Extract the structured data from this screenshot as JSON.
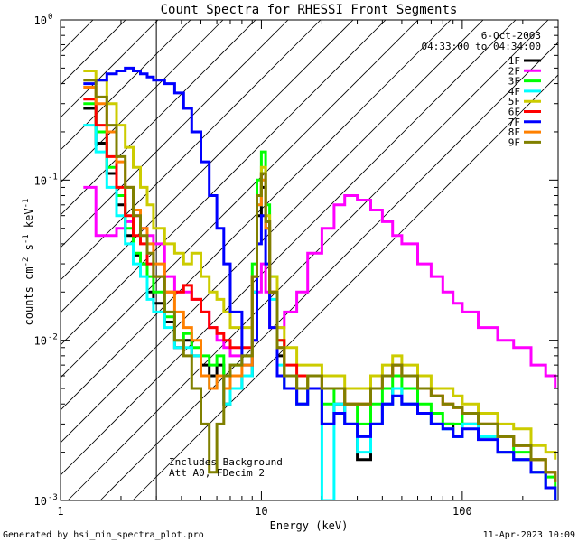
{
  "footer": {
    "generated_by": "Generated by hsi_min_spectra_plot.pro",
    "timestamp": "11-Apr-2023 10:09"
  },
  "chart_data": {
    "type": "line",
    "style": "step",
    "title": "Count Spectra for RHESSI Front Segments",
    "xlabel": "Energy (keV)",
    "ylabel_parts": [
      "counts cm",
      "-2",
      " s",
      "-1",
      " keV",
      "-1"
    ],
    "xscale": "log",
    "yscale": "log",
    "xlim": [
      1.0,
      300.0
    ],
    "ylim": [
      0.001,
      1.0
    ],
    "xticks": [
      {
        "value": 1,
        "label": "1"
      },
      {
        "value": 10,
        "label": "10"
      },
      {
        "value": 100,
        "label": "100"
      }
    ],
    "yticks": [
      {
        "value": 0.001,
        "label": "10",
        "exp": "-3"
      },
      {
        "value": 0.01,
        "label": "10",
        "exp": "-2"
      },
      {
        "value": 0.1,
        "label": "10",
        "exp": "-1"
      },
      {
        "value": 1,
        "label": "10",
        "exp": "0"
      }
    ],
    "hatched_region": [
      1.0,
      3.0
    ],
    "date": "6-Oct-2003",
    "time_range": "04:33:00 to 04:34:00",
    "annotations": [
      "Includes Background",
      "Att A0, FDecim 2"
    ],
    "legend_position": "top-right",
    "series": [
      {
        "name": "1F",
        "color": "#000000",
        "x": [
          1.3,
          1.5,
          1.7,
          1.9,
          2.1,
          2.3,
          2.5,
          2.7,
          2.9,
          3.3,
          3.7,
          4.1,
          4.5,
          5.0,
          5.5,
          6.0,
          6.5,
          7.0,
          8.0,
          9.0,
          9.5,
          10.0,
          10.5,
          11.0,
          12.0,
          13.0,
          15.0,
          17.0,
          20.0,
          23.0,
          26.0,
          30.0,
          35.0,
          40.0,
          45.0,
          50.0,
          60.0,
          70.0,
          80.0,
          90.0,
          100.0,
          120.0,
          150.0,
          180.0,
          220.0,
          260.0,
          290.0
        ],
        "y": [
          0.28,
          0.17,
          0.11,
          0.07,
          0.045,
          0.034,
          0.03,
          0.02,
          0.017,
          0.013,
          0.009,
          0.01,
          0.008,
          0.007,
          0.006,
          0.007,
          0.004,
          0.005,
          0.006,
          0.02,
          0.06,
          0.09,
          0.05,
          0.02,
          0.008,
          0.005,
          0.004,
          0.005,
          0.003,
          0.004,
          0.003,
          0.0018,
          0.003,
          0.004,
          0.005,
          0.004,
          0.0035,
          0.003,
          0.003,
          0.0025,
          0.003,
          0.0025,
          0.002,
          0.0018,
          0.0015,
          0.0012,
          0.001
        ]
      },
      {
        "name": "2F",
        "color": "#ff00ff",
        "x": [
          1.3,
          1.5,
          1.7,
          1.9,
          2.1,
          2.3,
          2.5,
          2.7,
          2.9,
          3.3,
          3.7,
          4.1,
          4.5,
          5.0,
          5.5,
          6.0,
          6.5,
          7.0,
          8.0,
          9.0,
          9.5,
          10.0,
          10.5,
          11.0,
          12.0,
          13.0,
          15.0,
          17.0,
          20.0,
          23.0,
          26.0,
          30.0,
          35.0,
          40.0,
          45.0,
          50.0,
          60.0,
          70.0,
          80.0,
          90.0,
          100.0,
          120.0,
          150.0,
          180.0,
          220.0,
          260.0,
          290.0
        ],
        "y": [
          0.09,
          0.045,
          0.045,
          0.05,
          0.055,
          0.06,
          0.05,
          0.045,
          0.04,
          0.025,
          0.02,
          0.02,
          0.018,
          0.015,
          0.012,
          0.01,
          0.009,
          0.008,
          0.008,
          0.01,
          0.02,
          0.03,
          0.02,
          0.012,
          0.012,
          0.015,
          0.02,
          0.035,
          0.05,
          0.07,
          0.08,
          0.075,
          0.065,
          0.055,
          0.045,
          0.04,
          0.03,
          0.025,
          0.02,
          0.017,
          0.015,
          0.012,
          0.01,
          0.009,
          0.007,
          0.006,
          0.005
        ]
      },
      {
        "name": "3F",
        "color": "#00ff00",
        "x": [
          1.3,
          1.5,
          1.7,
          1.9,
          2.1,
          2.3,
          2.5,
          2.7,
          2.9,
          3.3,
          3.7,
          4.1,
          4.5,
          5.0,
          5.5,
          6.0,
          6.5,
          7.0,
          8.0,
          9.0,
          9.5,
          10.0,
          10.5,
          11.0,
          12.0,
          13.0,
          15.0,
          17.0,
          20.0,
          23.0,
          26.0,
          30.0,
          35.0,
          40.0,
          45.0,
          50.0,
          60.0,
          70.0,
          80.0,
          90.0,
          100.0,
          120.0,
          150.0,
          180.0,
          220.0,
          260.0,
          290.0
        ],
        "y": [
          0.3,
          0.2,
          0.12,
          0.08,
          0.05,
          0.035,
          0.03,
          0.025,
          0.02,
          0.014,
          0.01,
          0.011,
          0.009,
          0.008,
          0.007,
          0.008,
          0.006,
          0.007,
          0.008,
          0.03,
          0.1,
          0.15,
          0.07,
          0.025,
          0.01,
          0.006,
          0.005,
          0.006,
          0.004,
          0.005,
          0.004,
          0.003,
          0.004,
          0.005,
          0.006,
          0.005,
          0.004,
          0.0035,
          0.003,
          0.003,
          0.0035,
          0.003,
          0.0025,
          0.002,
          0.0018,
          0.0014,
          0.0012
        ]
      },
      {
        "name": "4F",
        "color": "#00ffff",
        "x": [
          1.3,
          1.5,
          1.7,
          1.9,
          2.1,
          2.3,
          2.5,
          2.7,
          2.9,
          3.3,
          3.7,
          4.1,
          4.5,
          5.0,
          5.5,
          6.0,
          6.5,
          7.0,
          8.0,
          9.0,
          9.5,
          10.0,
          10.5,
          11.0,
          12.0,
          13.0,
          15.0,
          17.0,
          20.0,
          23.0,
          26.0,
          30.0,
          35.0,
          40.0,
          45.0,
          50.0,
          60.0,
          70.0,
          80.0,
          90.0,
          100.0,
          120.0,
          150.0,
          180.0,
          220.0,
          260.0,
          290.0
        ],
        "y": [
          0.22,
          0.15,
          0.09,
          0.06,
          0.04,
          0.03,
          0.025,
          0.018,
          0.015,
          0.012,
          0.009,
          0.009,
          0.008,
          0.006,
          0.005,
          0.006,
          0.004,
          0.005,
          0.006,
          0.02,
          0.07,
          0.1,
          0.05,
          0.018,
          0.007,
          0.005,
          0.004,
          0.005,
          0.001,
          0.004,
          0.003,
          0.002,
          0.003,
          0.004,
          0.005,
          0.004,
          0.0035,
          0.003,
          0.0028,
          0.0025,
          0.003,
          0.0025,
          0.002,
          0.0018,
          0.0015,
          0.0012,
          0.001
        ]
      },
      {
        "name": "5F",
        "color": "#cccc00",
        "x": [
          1.3,
          1.5,
          1.7,
          1.9,
          2.1,
          2.3,
          2.5,
          2.7,
          2.9,
          3.3,
          3.7,
          4.1,
          4.5,
          5.0,
          5.5,
          6.0,
          6.5,
          7.0,
          8.0,
          9.0,
          9.5,
          10.0,
          10.5,
          11.0,
          12.0,
          13.0,
          15.0,
          17.0,
          20.0,
          23.0,
          26.0,
          30.0,
          35.0,
          40.0,
          45.0,
          50.0,
          60.0,
          70.0,
          80.0,
          90.0,
          100.0,
          120.0,
          150.0,
          180.0,
          220.0,
          260.0,
          290.0
        ],
        "y": [
          0.48,
          0.42,
          0.3,
          0.22,
          0.16,
          0.12,
          0.09,
          0.07,
          0.05,
          0.04,
          0.035,
          0.03,
          0.035,
          0.025,
          0.02,
          0.018,
          0.015,
          0.012,
          0.012,
          0.025,
          0.08,
          0.12,
          0.06,
          0.025,
          0.012,
          0.009,
          0.007,
          0.007,
          0.006,
          0.006,
          0.005,
          0.005,
          0.006,
          0.007,
          0.008,
          0.007,
          0.006,
          0.005,
          0.005,
          0.0045,
          0.004,
          0.0035,
          0.003,
          0.0028,
          0.0022,
          0.002,
          0.0018
        ]
      },
      {
        "name": "6F",
        "color": "#ff0000",
        "x": [
          1.3,
          1.5,
          1.7,
          1.9,
          2.1,
          2.3,
          2.5,
          2.7,
          2.9,
          3.3,
          3.7,
          4.1,
          4.5,
          5.0,
          5.5,
          6.0,
          6.5,
          7.0,
          8.0,
          9.0,
          9.5,
          10.0,
          10.5,
          11.0,
          12.0,
          13.0,
          15.0,
          17.0,
          20.0,
          23.0,
          26.0,
          30.0,
          35.0,
          40.0,
          45.0,
          50.0,
          60.0,
          70.0,
          80.0,
          90.0,
          100.0,
          120.0,
          150.0,
          180.0,
          220.0,
          260.0,
          290.0
        ],
        "y": [
          0.32,
          0.22,
          0.14,
          0.09,
          0.06,
          0.045,
          0.04,
          0.03,
          0.025,
          0.02,
          0.02,
          0.022,
          0.018,
          0.015,
          0.012,
          0.011,
          0.01,
          0.009,
          0.009,
          0.025,
          0.08,
          0.11,
          0.055,
          0.02,
          0.01,
          0.007,
          0.006,
          0.006,
          0.005,
          0.005,
          0.004,
          0.004,
          0.005,
          0.006,
          0.007,
          0.006,
          0.005,
          0.0045,
          0.004,
          0.0038,
          0.0035,
          0.003,
          0.0025,
          0.0022,
          0.0018,
          0.0015,
          0.0013
        ]
      },
      {
        "name": "7F",
        "color": "#0000ff",
        "x": [
          1.3,
          1.5,
          1.7,
          1.9,
          2.1,
          2.3,
          2.5,
          2.7,
          2.9,
          3.3,
          3.7,
          4.1,
          4.5,
          5.0,
          5.5,
          6.0,
          6.5,
          7.0,
          8.0,
          9.0,
          9.5,
          10.0,
          10.5,
          11.0,
          12.0,
          13.0,
          15.0,
          17.0,
          20.0,
          23.0,
          26.0,
          30.0,
          35.0,
          40.0,
          45.0,
          50.0,
          60.0,
          70.0,
          80.0,
          90.0,
          100.0,
          120.0,
          150.0,
          180.0,
          220.0,
          260.0,
          290.0
        ],
        "y": [
          0.4,
          0.42,
          0.46,
          0.48,
          0.5,
          0.48,
          0.46,
          0.44,
          0.42,
          0.4,
          0.35,
          0.28,
          0.2,
          0.13,
          0.08,
          0.05,
          0.03,
          0.015,
          0.007,
          0.01,
          0.04,
          0.06,
          0.03,
          0.012,
          0.006,
          0.005,
          0.004,
          0.005,
          0.003,
          0.0035,
          0.003,
          0.0025,
          0.003,
          0.004,
          0.0045,
          0.004,
          0.0035,
          0.003,
          0.0028,
          0.0025,
          0.0028,
          0.0024,
          0.002,
          0.0018,
          0.0015,
          0.0012,
          0.001
        ]
      },
      {
        "name": "8F",
        "color": "#ff8000",
        "x": [
          1.3,
          1.5,
          1.7,
          1.9,
          2.1,
          2.3,
          2.5,
          2.7,
          2.9,
          3.3,
          3.7,
          4.1,
          4.5,
          5.0,
          5.5,
          6.0,
          6.5,
          7.0,
          8.0,
          9.0,
          9.5,
          10.0,
          10.5,
          11.0,
          12.0,
          13.0,
          15.0,
          17.0,
          20.0,
          23.0,
          26.0,
          30.0,
          35.0,
          40.0,
          45.0,
          50.0,
          60.0,
          70.0,
          80.0,
          90.0,
          100.0,
          120.0,
          150.0,
          180.0,
          220.0,
          260.0,
          290.0
        ],
        "y": [
          0.38,
          0.3,
          0.2,
          0.13,
          0.09,
          0.065,
          0.05,
          0.04,
          0.03,
          0.02,
          0.015,
          0.012,
          0.01,
          0.006,
          0.005,
          0.006,
          0.005,
          0.006,
          0.007,
          0.025,
          0.07,
          0.1,
          0.05,
          0.02,
          0.009,
          0.006,
          0.005,
          0.006,
          0.005,
          0.005,
          0.004,
          0.004,
          0.005,
          0.006,
          0.007,
          0.006,
          0.005,
          0.0045,
          0.004,
          0.0038,
          0.0035,
          0.003,
          0.0025,
          0.0022,
          0.0018,
          0.0015,
          0.0013
        ]
      },
      {
        "name": "9F",
        "color": "#808000",
        "x": [
          1.3,
          1.5,
          1.7,
          1.9,
          2.1,
          2.3,
          2.5,
          2.7,
          2.9,
          3.3,
          3.7,
          4.1,
          4.5,
          5.0,
          5.5,
          6.0,
          6.5,
          7.0,
          8.0,
          9.0,
          9.5,
          10.0,
          10.5,
          11.0,
          12.0,
          13.0,
          15.0,
          17.0,
          20.0,
          23.0,
          26.0,
          30.0,
          35.0,
          40.0,
          45.0,
          50.0,
          60.0,
          70.0,
          80.0,
          90.0,
          100.0,
          120.0,
          150.0,
          180.0,
          220.0,
          260.0,
          290.0
        ],
        "y": [
          0.42,
          0.33,
          0.22,
          0.14,
          0.09,
          0.06,
          0.045,
          0.035,
          0.025,
          0.015,
          0.01,
          0.008,
          0.005,
          0.003,
          0.0015,
          0.003,
          0.006,
          0.007,
          0.008,
          0.025,
          0.08,
          0.11,
          0.055,
          0.02,
          0.009,
          0.006,
          0.005,
          0.006,
          0.005,
          0.005,
          0.004,
          0.004,
          0.005,
          0.006,
          0.007,
          0.006,
          0.005,
          0.0045,
          0.004,
          0.0038,
          0.0035,
          0.003,
          0.0025,
          0.0022,
          0.0018,
          0.0015,
          0.0013
        ]
      }
    ]
  }
}
